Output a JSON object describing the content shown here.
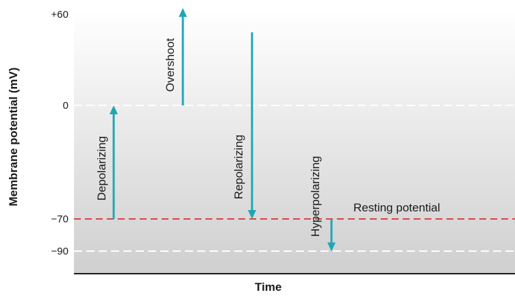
{
  "diagram": {
    "y_axis_title": "Membrane potential (mV)",
    "x_axis_title": "Time",
    "y_ticks": [
      "+60",
      "0",
      "−70",
      "−90"
    ],
    "resting_label": "Resting potential",
    "colors": {
      "background_top": "#ffffff",
      "background_bottom": "#cfcfcf",
      "arrow": "#1fa6b4",
      "resting_line": "#d9404a",
      "dashed_line": "#ffffff",
      "axis": "#1a1a1a",
      "text": "#1a1a1a"
    },
    "arrows": [
      {
        "label": "Depolarizing",
        "from_mV": -70,
        "to_mV": 0
      },
      {
        "label": "Overshoot",
        "from_mV": 0,
        "to_mV": 60
      },
      {
        "label": "Repolarizing",
        "from_mV": 45,
        "to_mV": -70
      },
      {
        "label": "Hyperpolarizing",
        "from_mV": -70,
        "to_mV": -90
      }
    ]
  }
}
